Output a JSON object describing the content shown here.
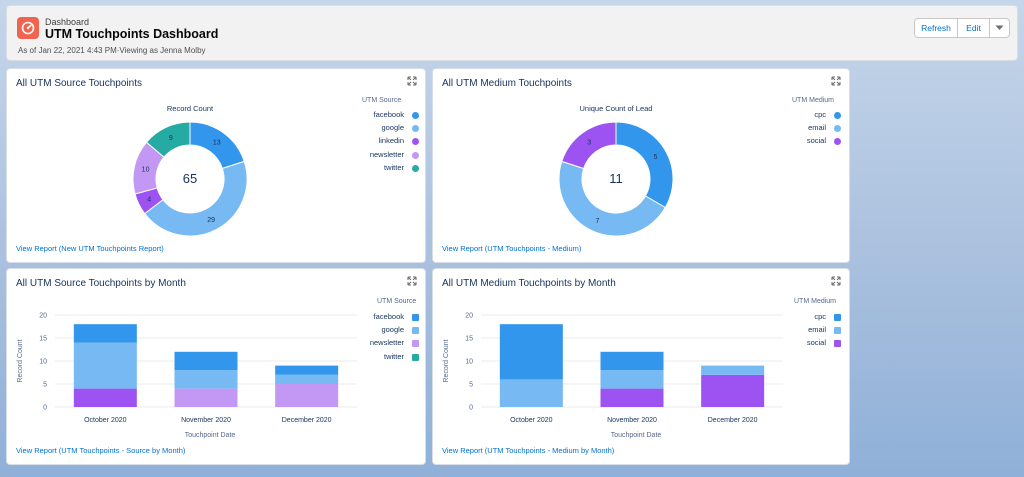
{
  "header": {
    "kicker": "Dashboard",
    "title": "UTM Touchpoints Dashboard",
    "subtitle": "As of Jan 22, 2021 4:43 PM·Viewing as Jenna Molby",
    "refresh_label": "Refresh",
    "edit_label": "Edit",
    "icon": "dashboard-gauge-icon"
  },
  "colors": {
    "facebook": "#3296ed",
    "google": "#77b9f2",
    "linkedin": "#9d53f2",
    "newsletter": "#c398f5",
    "twitter": "#26aba4",
    "cpc": "#3296ed",
    "email": "#77b9f2",
    "social": "#9d53f2"
  },
  "cards": {
    "source_donut": {
      "title": "All UTM Source Touchpoints",
      "link": "View Report (New UTM Touchpoints Report)"
    },
    "medium_donut": {
      "title": "All UTM Medium Touchpoints",
      "link": "View Report (UTM Touchpoints - Medium)"
    },
    "source_month": {
      "title": "All UTM Source Touchpoints by Month",
      "link": "View Report (UTM Touchpoints - Source by Month)"
    },
    "medium_month": {
      "title": "All UTM Medium Touchpoints by Month",
      "link": "View Report (UTM Touchpoints - Medium by Month)"
    }
  },
  "chart_data": [
    {
      "type": "pie",
      "title": "Record Count",
      "legend_title": "UTM Source",
      "total": "65",
      "slices": [
        {
          "label": "facebook",
          "value": 13
        },
        {
          "label": "google",
          "value": 29
        },
        {
          "label": "linkedin",
          "value": 4
        },
        {
          "label": "newsletter",
          "value": 10
        },
        {
          "label": "twitter",
          "value": 9
        }
      ],
      "legend": [
        "facebook",
        "google",
        "linkedin",
        "newsletter",
        "twitter"
      ]
    },
    {
      "type": "pie",
      "title": "Unique Count of Lead",
      "legend_title": "UTM Medium",
      "total": "11",
      "slices": [
        {
          "label": "cpc",
          "value": 5
        },
        {
          "label": "email",
          "value": 7
        },
        {
          "label": "social",
          "value": 3
        }
      ],
      "legend": [
        "cpc",
        "email",
        "social"
      ]
    },
    {
      "type": "bar",
      "stacked": true,
      "legend_title": "UTM Source",
      "xlabel": "Touchpoint Date",
      "ylabel": "Record Count",
      "ylim": [
        0,
        20
      ],
      "yticks": [
        "0",
        "5",
        "10",
        "15",
        "20"
      ],
      "categories": [
        "October 2020",
        "November 2020",
        "December 2020"
      ],
      "series": [
        {
          "name": "newsletter",
          "values": [
            0,
            4,
            5
          ]
        },
        {
          "name": "linkedin",
          "values": [
            4,
            0,
            0
          ]
        },
        {
          "name": "google",
          "values": [
            10,
            4,
            2
          ]
        },
        {
          "name": "facebook",
          "values": [
            4,
            4,
            2
          ]
        }
      ],
      "legend": [
        "facebook",
        "google",
        "newsletter",
        "twitter"
      ]
    },
    {
      "type": "bar",
      "stacked": true,
      "legend_title": "UTM Medium",
      "xlabel": "Touchpoint Date",
      "ylabel": "Record Count",
      "ylim": [
        0,
        20
      ],
      "yticks": [
        "0",
        "5",
        "10",
        "15",
        "20"
      ],
      "categories": [
        "October 2020",
        "November 2020",
        "December 2020"
      ],
      "series": [
        {
          "name": "social",
          "values": [
            0,
            4,
            7
          ]
        },
        {
          "name": "email",
          "values": [
            6,
            4,
            2
          ]
        },
        {
          "name": "cpc",
          "values": [
            12,
            4,
            0
          ]
        }
      ],
      "legend": [
        "cpc",
        "email",
        "social"
      ]
    }
  ]
}
